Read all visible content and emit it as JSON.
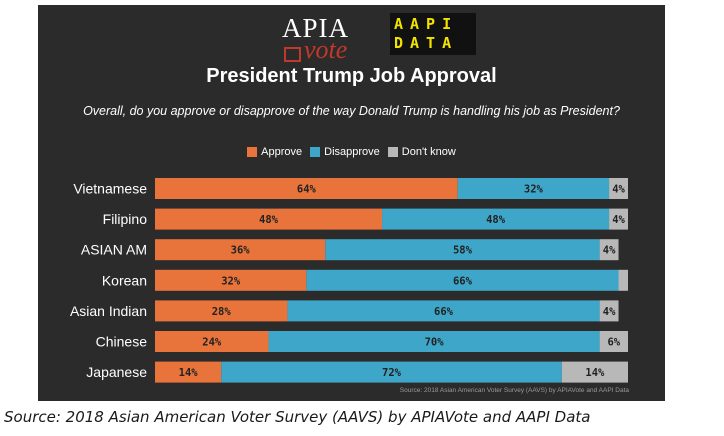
{
  "logos": {
    "apia_top": "APIA",
    "apia_bottom": "vote",
    "aapi_line1": "AAPI",
    "aapi_line2": "DATA"
  },
  "colors": {
    "approve": "#e8743b",
    "disapprove": "#3ea6c9",
    "dont_know": "#b8b8b8",
    "panel_background": "#2b2b2b"
  },
  "chart_data": {
    "type": "bar",
    "orientation": "horizontal",
    "stacked": true,
    "title": "President Trump Job Approval",
    "subtitle": "Overall, do you approve or disapprove of the way Donald Trump is handling his job as President?",
    "categories": [
      "Vietnamese",
      "Filipino",
      "ASIAN AM",
      "Korean",
      "Asian Indian",
      "Chinese",
      "Japanese"
    ],
    "series": [
      {
        "name": "Approve",
        "values": [
          64,
          48,
          36,
          32,
          28,
          24,
          14
        ],
        "labels": [
          "64%",
          "48%",
          "36%",
          "32%",
          "28%",
          "24%",
          "14%"
        ]
      },
      {
        "name": "Disapprove",
        "values": [
          32,
          48,
          58,
          66,
          66,
          70,
          72
        ],
        "labels": [
          "32%",
          "48%",
          "58%",
          "66%",
          "66%",
          "70%",
          "72%"
        ]
      },
      {
        "name": "Don't know",
        "values": [
          4,
          4,
          4,
          2,
          4,
          6,
          14
        ],
        "labels": [
          "4%",
          "4%",
          "4%",
          "",
          "4%",
          "6%",
          "14%"
        ]
      }
    ],
    "xlim": [
      0,
      100
    ],
    "legend": "top-center",
    "grid": false,
    "source": "Source: 2018 Asian American Voter Survey (AAVS) by APIAVote and AAPI Data"
  },
  "caption": "Source: 2018 Asian American Voter Survey (AAVS) by APIAVote and AAPI Data"
}
